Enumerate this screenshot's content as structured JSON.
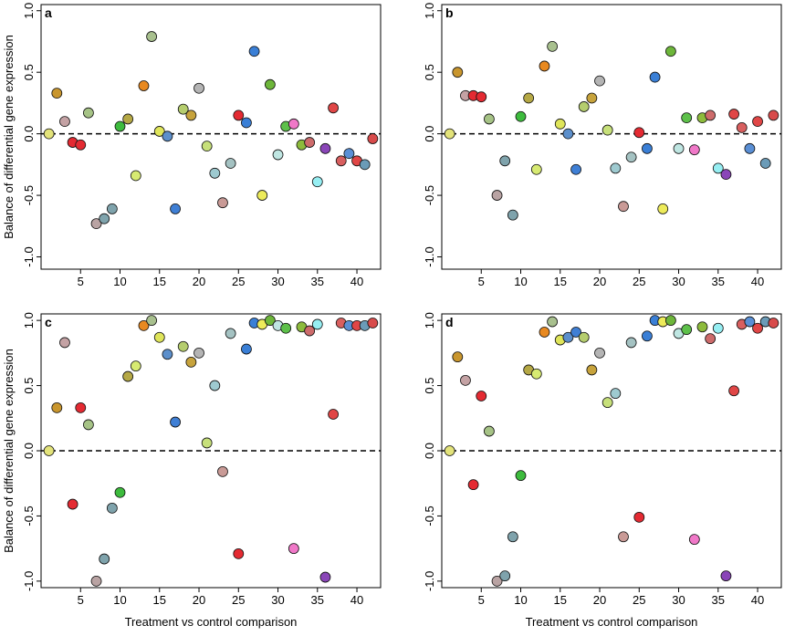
{
  "figure": {
    "ylabel": "Balance of differential gene expression",
    "xlabel": "Treatment vs control comparison"
  },
  "chart_data": [
    {
      "type": "scatter",
      "panel": "a",
      "xlabel": "",
      "ylabel": "Balance of differential gene expression",
      "xlim": [
        0,
        43
      ],
      "ylim": [
        -1.1,
        1.05
      ],
      "xticks": [
        5,
        10,
        15,
        20,
        25,
        30,
        35,
        40
      ],
      "yticks": [
        -1.0,
        -0.5,
        0.0,
        0.5,
        1.0
      ],
      "ytick_labels": [
        "-1.0",
        "-0.5",
        "0.0",
        "0.5",
        "1.0"
      ],
      "reference_line": 0,
      "points": [
        {
          "x": 1,
          "y": 0.0,
          "color": "#e3e37a"
        },
        {
          "x": 2,
          "y": 0.33,
          "color": "#c9962e"
        },
        {
          "x": 3,
          "y": 0.1,
          "color": "#c4a2a4"
        },
        {
          "x": 4,
          "y": -0.07,
          "color": "#e42a32"
        },
        {
          "x": 5,
          "y": -0.09,
          "color": "#e42a32"
        },
        {
          "x": 6,
          "y": 0.17,
          "color": "#a6c386"
        },
        {
          "x": 7,
          "y": -0.73,
          "color": "#b9a3a3"
        },
        {
          "x": 8,
          "y": -0.69,
          "color": "#7fa3ac"
        },
        {
          "x": 9,
          "y": -0.61,
          "color": "#7fa3ac"
        },
        {
          "x": 10,
          "y": 0.06,
          "color": "#3dbb3d"
        },
        {
          "x": 11,
          "y": 0.12,
          "color": "#b5a845"
        },
        {
          "x": 12,
          "y": -0.34,
          "color": "#d7ea72"
        },
        {
          "x": 13,
          "y": 0.39,
          "color": "#e88920"
        },
        {
          "x": 14,
          "y": 0.79,
          "color": "#a8c08e"
        },
        {
          "x": 15,
          "y": 0.02,
          "color": "#dfe55a"
        },
        {
          "x": 16,
          "y": -0.02,
          "color": "#5c8fcb"
        },
        {
          "x": 17,
          "y": -0.61,
          "color": "#3f7fd5"
        },
        {
          "x": 18,
          "y": 0.2,
          "color": "#b5cd6e"
        },
        {
          "x": 19,
          "y": 0.15,
          "color": "#c7a33c"
        },
        {
          "x": 20,
          "y": 0.37,
          "color": "#b4b4b4"
        },
        {
          "x": 21,
          "y": -0.1,
          "color": "#c7e07a"
        },
        {
          "x": 22,
          "y": -0.32,
          "color": "#9ecad0"
        },
        {
          "x": 23,
          "y": -0.56,
          "color": "#c99a96"
        },
        {
          "x": 24,
          "y": -0.24,
          "color": "#a4c2c2"
        },
        {
          "x": 25,
          "y": 0.15,
          "color": "#e42a32"
        },
        {
          "x": 26,
          "y": 0.09,
          "color": "#3a7fd6"
        },
        {
          "x": 27,
          "y": 0.67,
          "color": "#3a7fd6"
        },
        {
          "x": 28,
          "y": -0.5,
          "color": "#edeb5a"
        },
        {
          "x": 29,
          "y": 0.4,
          "color": "#6db63a"
        },
        {
          "x": 30,
          "y": -0.17,
          "color": "#bfe6e2"
        },
        {
          "x": 31,
          "y": 0.06,
          "color": "#5dc04a"
        },
        {
          "x": 32,
          "y": 0.08,
          "color": "#f078c8"
        },
        {
          "x": 33,
          "y": -0.09,
          "color": "#8dbb3c"
        },
        {
          "x": 34,
          "y": -0.07,
          "color": "#cd6b6b"
        },
        {
          "x": 35,
          "y": -0.39,
          "color": "#96eef2"
        },
        {
          "x": 36,
          "y": -0.12,
          "color": "#8a46b8"
        },
        {
          "x": 37,
          "y": 0.21,
          "color": "#e04646"
        },
        {
          "x": 38,
          "y": -0.22,
          "color": "#d85f5f"
        },
        {
          "x": 39,
          "y": -0.16,
          "color": "#5a8fd5"
        },
        {
          "x": 40,
          "y": -0.22,
          "color": "#e04646"
        },
        {
          "x": 41,
          "y": -0.25,
          "color": "#6b9bb7"
        },
        {
          "x": 42,
          "y": -0.04,
          "color": "#d84b4b"
        }
      ]
    },
    {
      "type": "scatter",
      "panel": "b",
      "xlabel": "",
      "ylabel": "",
      "xlim": [
        0,
        43
      ],
      "ylim": [
        -1.1,
        1.05
      ],
      "xticks": [
        5,
        10,
        15,
        20,
        25,
        30,
        35,
        40
      ],
      "yticks": [
        -1.0,
        -0.5,
        0.0,
        0.5,
        1.0
      ],
      "ytick_labels": [
        "-1.0",
        "-0.5",
        "0.0",
        "0.5",
        "1.0"
      ],
      "reference_line": 0,
      "points": [
        {
          "x": 1,
          "y": 0.0,
          "color": "#e3e37a"
        },
        {
          "x": 2,
          "y": 0.5,
          "color": "#c9962e"
        },
        {
          "x": 3,
          "y": 0.31,
          "color": "#c4a2a4"
        },
        {
          "x": 4,
          "y": 0.31,
          "color": "#e42a32"
        },
        {
          "x": 5,
          "y": 0.3,
          "color": "#e42a32"
        },
        {
          "x": 6,
          "y": 0.12,
          "color": "#a6c386"
        },
        {
          "x": 7,
          "y": -0.5,
          "color": "#b9a3a3"
        },
        {
          "x": 8,
          "y": -0.22,
          "color": "#7fa3ac"
        },
        {
          "x": 9,
          "y": -0.66,
          "color": "#7fa3ac"
        },
        {
          "x": 10,
          "y": 0.14,
          "color": "#3dbb3d"
        },
        {
          "x": 11,
          "y": 0.29,
          "color": "#b5a845"
        },
        {
          "x": 12,
          "y": -0.29,
          "color": "#d7ea72"
        },
        {
          "x": 13,
          "y": 0.55,
          "color": "#e88920"
        },
        {
          "x": 14,
          "y": 0.71,
          "color": "#a8c08e"
        },
        {
          "x": 15,
          "y": 0.08,
          "color": "#dfe55a"
        },
        {
          "x": 16,
          "y": 0.0,
          "color": "#5c8fcb"
        },
        {
          "x": 17,
          "y": -0.29,
          "color": "#3f7fd5"
        },
        {
          "x": 18,
          "y": 0.22,
          "color": "#b5cd6e"
        },
        {
          "x": 19,
          "y": 0.29,
          "color": "#c7a33c"
        },
        {
          "x": 20,
          "y": 0.43,
          "color": "#b4b4b4"
        },
        {
          "x": 21,
          "y": 0.03,
          "color": "#c7e07a"
        },
        {
          "x": 22,
          "y": -0.28,
          "color": "#9ecad0"
        },
        {
          "x": 23,
          "y": -0.59,
          "color": "#c99a96"
        },
        {
          "x": 24,
          "y": -0.19,
          "color": "#a4c2c2"
        },
        {
          "x": 25,
          "y": 0.01,
          "color": "#e42a32"
        },
        {
          "x": 26,
          "y": -0.12,
          "color": "#3a7fd6"
        },
        {
          "x": 27,
          "y": 0.46,
          "color": "#3a7fd6"
        },
        {
          "x": 28,
          "y": -0.61,
          "color": "#edeb5a"
        },
        {
          "x": 29,
          "y": 0.67,
          "color": "#6db63a"
        },
        {
          "x": 30,
          "y": -0.12,
          "color": "#bfe6e2"
        },
        {
          "x": 31,
          "y": 0.13,
          "color": "#5dc04a"
        },
        {
          "x": 32,
          "y": -0.13,
          "color": "#f078c8"
        },
        {
          "x": 33,
          "y": 0.13,
          "color": "#8dbb3c"
        },
        {
          "x": 34,
          "y": 0.15,
          "color": "#cd6b6b"
        },
        {
          "x": 35,
          "y": -0.28,
          "color": "#96eef2"
        },
        {
          "x": 36,
          "y": -0.33,
          "color": "#8a46b8"
        },
        {
          "x": 37,
          "y": 0.16,
          "color": "#e04646"
        },
        {
          "x": 38,
          "y": 0.05,
          "color": "#d85f5f"
        },
        {
          "x": 39,
          "y": -0.12,
          "color": "#5a8fd5"
        },
        {
          "x": 40,
          "y": 0.1,
          "color": "#e04646"
        },
        {
          "x": 41,
          "y": -0.24,
          "color": "#6b9bb7"
        },
        {
          "x": 42,
          "y": 0.15,
          "color": "#d84b4b"
        }
      ]
    },
    {
      "type": "scatter",
      "panel": "c",
      "xlabel": "Treatment vs control comparison",
      "ylabel": "Balance of differential gene expression",
      "xlim": [
        0,
        43
      ],
      "ylim": [
        -1.05,
        1.05
      ],
      "xticks": [
        5,
        10,
        15,
        20,
        25,
        30,
        35,
        40
      ],
      "yticks": [
        -1.0,
        -0.5,
        0.0,
        0.5,
        1.0
      ],
      "ytick_labels": [
        "-1.0",
        "-0.5",
        "0.0",
        "0.5",
        "1.0"
      ],
      "reference_line": 0,
      "points": [
        {
          "x": 1,
          "y": 0.0,
          "color": "#e3e37a"
        },
        {
          "x": 2,
          "y": 0.33,
          "color": "#c9962e"
        },
        {
          "x": 3,
          "y": 0.83,
          "color": "#c4a2a4"
        },
        {
          "x": 4,
          "y": -0.41,
          "color": "#e42a32"
        },
        {
          "x": 5,
          "y": 0.33,
          "color": "#e42a32"
        },
        {
          "x": 6,
          "y": 0.2,
          "color": "#a6c386"
        },
        {
          "x": 7,
          "y": -1.0,
          "color": "#b9a3a3"
        },
        {
          "x": 8,
          "y": -0.83,
          "color": "#7fa3ac"
        },
        {
          "x": 9,
          "y": -0.44,
          "color": "#7fa3ac"
        },
        {
          "x": 10,
          "y": -0.32,
          "color": "#3dbb3d"
        },
        {
          "x": 11,
          "y": 0.57,
          "color": "#b5a845"
        },
        {
          "x": 12,
          "y": 0.65,
          "color": "#d7ea72"
        },
        {
          "x": 13,
          "y": 0.96,
          "color": "#e88920"
        },
        {
          "x": 14,
          "y": 1.0,
          "color": "#a8c08e"
        },
        {
          "x": 15,
          "y": 0.87,
          "color": "#dfe55a"
        },
        {
          "x": 16,
          "y": 0.74,
          "color": "#5c8fcb"
        },
        {
          "x": 17,
          "y": 0.22,
          "color": "#3f7fd5"
        },
        {
          "x": 18,
          "y": 0.8,
          "color": "#b5cd6e"
        },
        {
          "x": 19,
          "y": 0.68,
          "color": "#c7a33c"
        },
        {
          "x": 20,
          "y": 0.75,
          "color": "#b4b4b4"
        },
        {
          "x": 21,
          "y": 0.06,
          "color": "#c7e07a"
        },
        {
          "x": 22,
          "y": 0.5,
          "color": "#9ecad0"
        },
        {
          "x": 23,
          "y": -0.16,
          "color": "#c99a96"
        },
        {
          "x": 24,
          "y": 0.9,
          "color": "#a4c2c2"
        },
        {
          "x": 25,
          "y": -0.79,
          "color": "#e42a32"
        },
        {
          "x": 26,
          "y": 0.78,
          "color": "#3a7fd6"
        },
        {
          "x": 27,
          "y": 0.98,
          "color": "#3a7fd6"
        },
        {
          "x": 28,
          "y": 0.97,
          "color": "#edeb5a"
        },
        {
          "x": 29,
          "y": 1.0,
          "color": "#6db63a"
        },
        {
          "x": 30,
          "y": 0.96,
          "color": "#bfe6e2"
        },
        {
          "x": 31,
          "y": 0.94,
          "color": "#5dc04a"
        },
        {
          "x": 32,
          "y": -0.75,
          "color": "#f078c8"
        },
        {
          "x": 33,
          "y": 0.95,
          "color": "#8dbb3c"
        },
        {
          "x": 34,
          "y": 0.92,
          "color": "#cd6b6b"
        },
        {
          "x": 35,
          "y": 0.97,
          "color": "#96eef2"
        },
        {
          "x": 36,
          "y": -0.97,
          "color": "#8a46b8"
        },
        {
          "x": 37,
          "y": 0.28,
          "color": "#e04646"
        },
        {
          "x": 38,
          "y": 0.98,
          "color": "#d85f5f"
        },
        {
          "x": 39,
          "y": 0.96,
          "color": "#5a8fd5"
        },
        {
          "x": 40,
          "y": 0.96,
          "color": "#e04646"
        },
        {
          "x": 41,
          "y": 0.96,
          "color": "#6b9bb7"
        },
        {
          "x": 42,
          "y": 0.98,
          "color": "#d84b4b"
        }
      ]
    },
    {
      "type": "scatter",
      "panel": "d",
      "xlabel": "Treatment vs control comparison",
      "ylabel": "",
      "xlim": [
        0,
        43
      ],
      "ylim": [
        -1.05,
        1.05
      ],
      "xticks": [
        5,
        10,
        15,
        20,
        25,
        30,
        35,
        40
      ],
      "yticks": [
        -1.0,
        -0.5,
        0.0,
        0.5,
        1.0
      ],
      "ytick_labels": [
        "-1.0",
        "-0.5",
        "0.0",
        "0.5",
        "1.0"
      ],
      "reference_line": 0,
      "points": [
        {
          "x": 1,
          "y": 0.0,
          "color": "#e3e37a"
        },
        {
          "x": 2,
          "y": 0.72,
          "color": "#c9962e"
        },
        {
          "x": 3,
          "y": 0.54,
          "color": "#c4a2a4"
        },
        {
          "x": 4,
          "y": -0.26,
          "color": "#e42a32"
        },
        {
          "x": 5,
          "y": 0.42,
          "color": "#e42a32"
        },
        {
          "x": 6,
          "y": 0.15,
          "color": "#a6c386"
        },
        {
          "x": 7,
          "y": -1.0,
          "color": "#b9a3a3"
        },
        {
          "x": 8,
          "y": -0.96,
          "color": "#7fa3ac"
        },
        {
          "x": 9,
          "y": -0.66,
          "color": "#7fa3ac"
        },
        {
          "x": 10,
          "y": -0.19,
          "color": "#3dbb3d"
        },
        {
          "x": 11,
          "y": 0.62,
          "color": "#b5a845"
        },
        {
          "x": 12,
          "y": 0.59,
          "color": "#d7ea72"
        },
        {
          "x": 13,
          "y": 0.91,
          "color": "#e88920"
        },
        {
          "x": 14,
          "y": 0.99,
          "color": "#a8c08e"
        },
        {
          "x": 15,
          "y": 0.85,
          "color": "#dfe55a"
        },
        {
          "x": 16,
          "y": 0.87,
          "color": "#5c8fcb"
        },
        {
          "x": 17,
          "y": 0.91,
          "color": "#3f7fd5"
        },
        {
          "x": 18,
          "y": 0.87,
          "color": "#b5cd6e"
        },
        {
          "x": 19,
          "y": 0.62,
          "color": "#c7a33c"
        },
        {
          "x": 20,
          "y": 0.75,
          "color": "#b4b4b4"
        },
        {
          "x": 21,
          "y": 0.37,
          "color": "#c7e07a"
        },
        {
          "x": 22,
          "y": 0.44,
          "color": "#9ecad0"
        },
        {
          "x": 23,
          "y": -0.66,
          "color": "#c99a96"
        },
        {
          "x": 24,
          "y": 0.83,
          "color": "#a4c2c2"
        },
        {
          "x": 25,
          "y": -0.51,
          "color": "#e42a32"
        },
        {
          "x": 26,
          "y": 0.88,
          "color": "#3a7fd6"
        },
        {
          "x": 27,
          "y": 1.0,
          "color": "#3a7fd6"
        },
        {
          "x": 28,
          "y": 0.99,
          "color": "#edeb5a"
        },
        {
          "x": 29,
          "y": 1.0,
          "color": "#6db63a"
        },
        {
          "x": 30,
          "y": 0.9,
          "color": "#bfe6e2"
        },
        {
          "x": 31,
          "y": 0.93,
          "color": "#5dc04a"
        },
        {
          "x": 32,
          "y": -0.68,
          "color": "#f078c8"
        },
        {
          "x": 33,
          "y": 0.95,
          "color": "#8dbb3c"
        },
        {
          "x": 34,
          "y": 0.86,
          "color": "#cd6b6b"
        },
        {
          "x": 35,
          "y": 0.94,
          "color": "#96eef2"
        },
        {
          "x": 36,
          "y": -0.96,
          "color": "#8a46b8"
        },
        {
          "x": 37,
          "y": 0.46,
          "color": "#e04646"
        },
        {
          "x": 38,
          "y": 0.97,
          "color": "#d85f5f"
        },
        {
          "x": 39,
          "y": 0.99,
          "color": "#5a8fd5"
        },
        {
          "x": 40,
          "y": 0.94,
          "color": "#e04646"
        },
        {
          "x": 41,
          "y": 0.99,
          "color": "#6b9bb7"
        },
        {
          "x": 42,
          "y": 0.98,
          "color": "#d84b4b"
        }
      ]
    }
  ]
}
